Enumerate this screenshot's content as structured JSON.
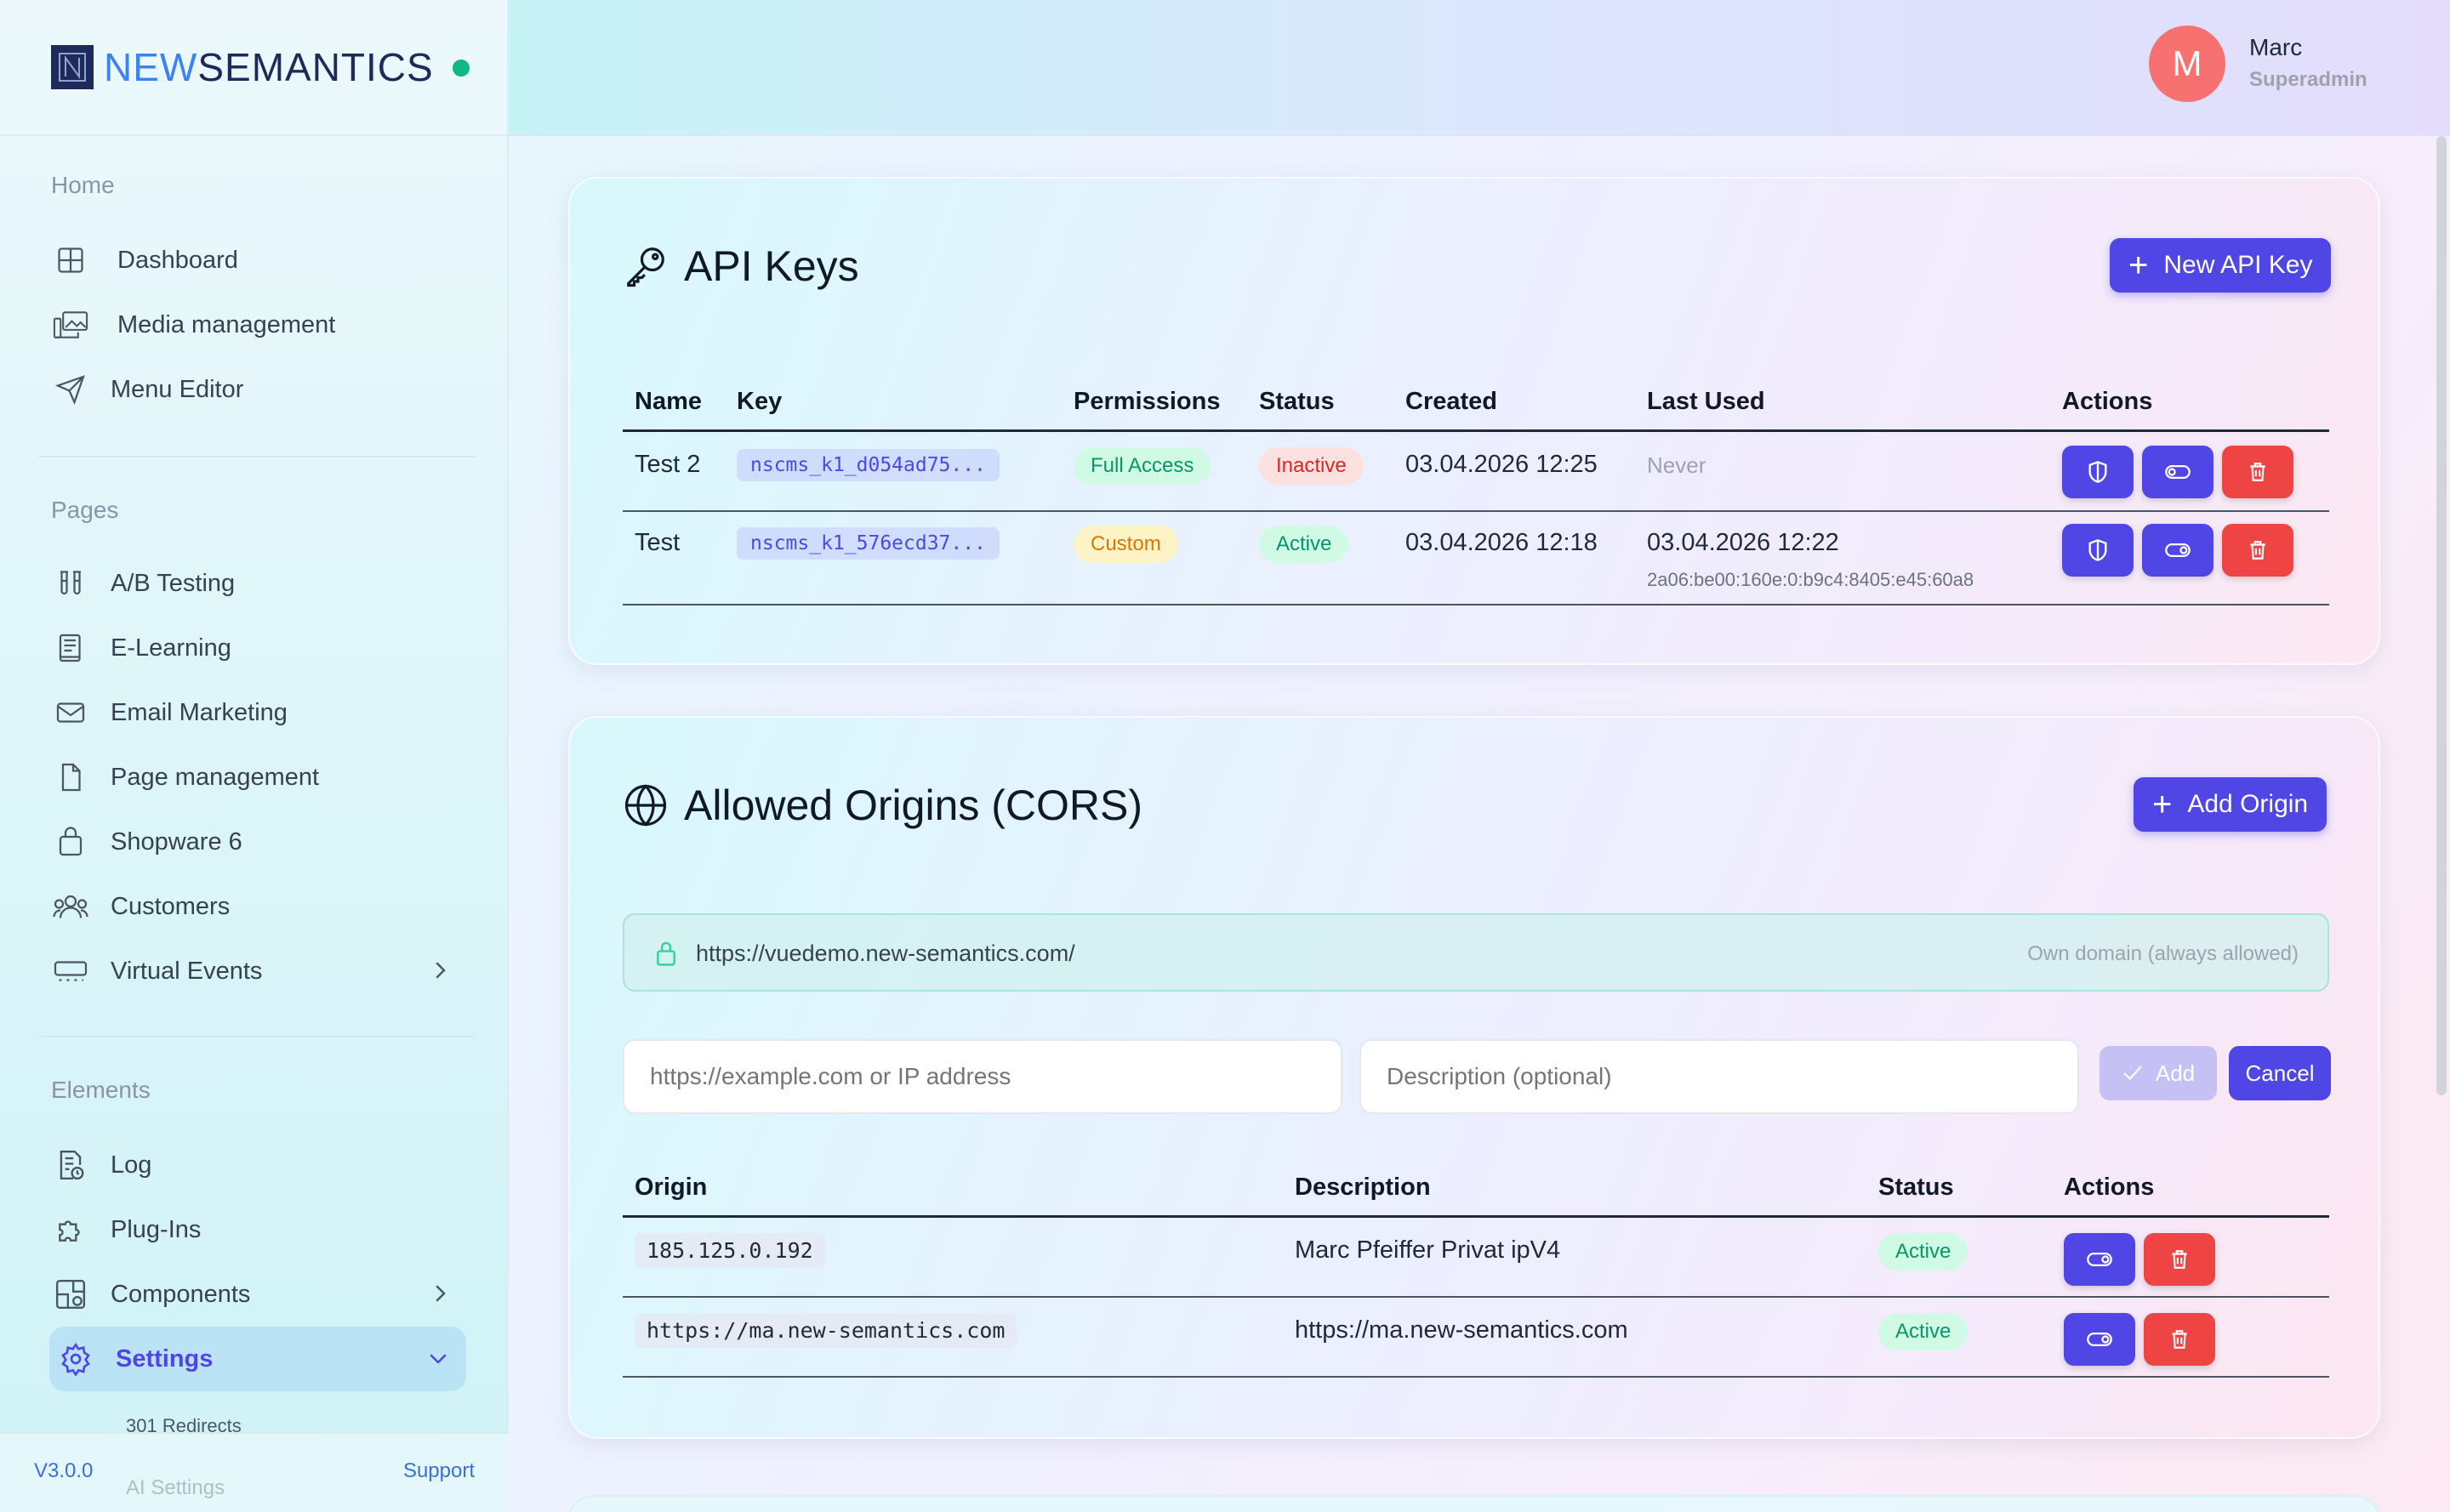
{
  "brand": {
    "new": "NEW",
    "semantics": "SEMANTICS"
  },
  "user": {
    "initial": "M",
    "name": "Marc",
    "role": "Superadmin"
  },
  "sidebar": {
    "sections": [
      {
        "label": "Home",
        "items": [
          {
            "label": "Dashboard",
            "icon": "grid-icon"
          },
          {
            "label": "Media management",
            "icon": "images-icon"
          },
          {
            "label": "Menu Editor",
            "icon": "send-icon"
          }
        ]
      },
      {
        "label": "Pages",
        "items": [
          {
            "label": "A/B Testing",
            "icon": "test-tubes-icon"
          },
          {
            "label": "E-Learning",
            "icon": "book-icon"
          },
          {
            "label": "Email Marketing",
            "icon": "mail-icon"
          },
          {
            "label": "Page management",
            "icon": "file-icon"
          },
          {
            "label": "Shopware 6",
            "icon": "shopping-bag-icon"
          },
          {
            "label": "Customers",
            "icon": "users-icon"
          },
          {
            "label": "Virtual Events",
            "icon": "events-icon"
          }
        ]
      },
      {
        "label": "Elements",
        "items": [
          {
            "label": "Log",
            "icon": "log-icon"
          },
          {
            "label": "Plug-Ins",
            "icon": "puzzle-icon"
          },
          {
            "label": "Components",
            "icon": "components-icon"
          },
          {
            "label": "Settings",
            "icon": "gear-icon"
          }
        ]
      }
    ],
    "sub_items": [
      "301 Redirects",
      "AI Settings"
    ],
    "version": "V3.0.0",
    "support": "Support"
  },
  "api_keys": {
    "title": "API Keys",
    "new_button": "New API Key",
    "columns": [
      "Name",
      "Key",
      "Permissions",
      "Status",
      "Created",
      "Last Used",
      "Actions"
    ],
    "rows": [
      {
        "name": "Test 2",
        "key": "nscms_k1_d054ad75...",
        "permissions": "Full Access",
        "status": "Inactive",
        "created": "03.04.2026 12:25",
        "last_used": "Never",
        "last_ip": ""
      },
      {
        "name": "Test",
        "key": "nscms_k1_576ecd37...",
        "permissions": "Custom",
        "status": "Active",
        "created": "03.04.2026 12:18",
        "last_used": "03.04.2026 12:22",
        "last_ip": "2a06:be00:160e:0:b9c4:8405:e45:60a8"
      }
    ]
  },
  "cors": {
    "title": "Allowed Origins (CORS)",
    "add_button": "Add Origin",
    "own_domain": {
      "url": "https://vuedemo.new-semantics.com/",
      "note": "Own domain (always allowed)"
    },
    "origin_placeholder": "https://example.com or IP address",
    "description_placeholder": "Description (optional)",
    "add_label": "Add",
    "cancel_label": "Cancel",
    "columns": [
      "Origin",
      "Description",
      "Status",
      "Actions"
    ],
    "rows": [
      {
        "origin": "185.125.0.192",
        "description": "Marc Pfeiffer Privat ipV4",
        "status": "Active"
      },
      {
        "origin": "https://ma.new-semantics.com",
        "description": "https://ma.new-semantics.com",
        "status": "Active"
      }
    ]
  },
  "colors": {
    "accent": "#4f46e5",
    "danger": "#ef4444",
    "success": "#10b981",
    "avatar": "#f87171"
  }
}
